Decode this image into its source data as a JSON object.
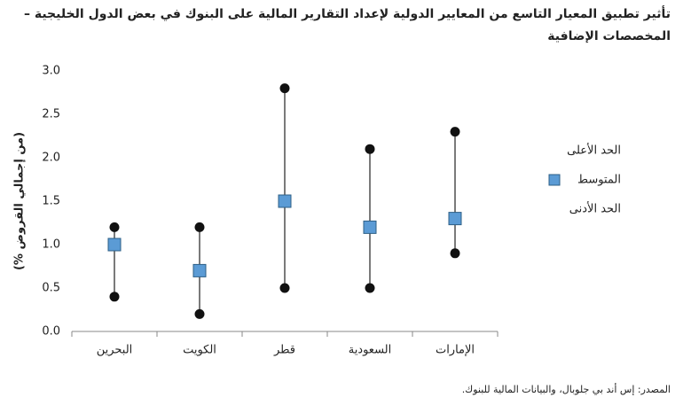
{
  "chart_data": {
    "type": "high-low-mean",
    "title": "تأثير تطبيق المعيار التاسع من المعايير الدولية لإعداد التقارير المالية على البنوك في بعض الدول الخليجية – المخصصات الإضافية",
    "ylabel": "(% من إجمالي القروض)",
    "source": "المصدر: إس أند بي جلوبال، والبيانات المالية للبنوك.",
    "categories": [
      "البحرين",
      "الكويت",
      "قطر",
      "السعودية",
      "الإمارات"
    ],
    "series": [
      {
        "name": "الحد الأعلى",
        "color": "#111111",
        "marker": "circle",
        "values": [
          1.2,
          1.2,
          2.8,
          2.1,
          2.3
        ]
      },
      {
        "name": "المتوسط",
        "color": "#5b9bd5",
        "marker": "square",
        "values": [
          1.0,
          0.7,
          1.5,
          1.2,
          1.3
        ]
      },
      {
        "name": "الحد الأدنى",
        "color": "#111111",
        "marker": "circle",
        "values": [
          0.4,
          0.2,
          0.5,
          0.5,
          0.9
        ]
      }
    ],
    "ylim": [
      0,
      3
    ],
    "yticks": [
      {
        "value": 0,
        "label": "0.0"
      },
      0.5,
      {
        "value": 1,
        "label": "1.0"
      },
      1.5,
      {
        "value": 2,
        "label": "2.0"
      },
      2.5,
      {
        "value": 3,
        "label": "3.0"
      }
    ],
    "grid": false
  }
}
